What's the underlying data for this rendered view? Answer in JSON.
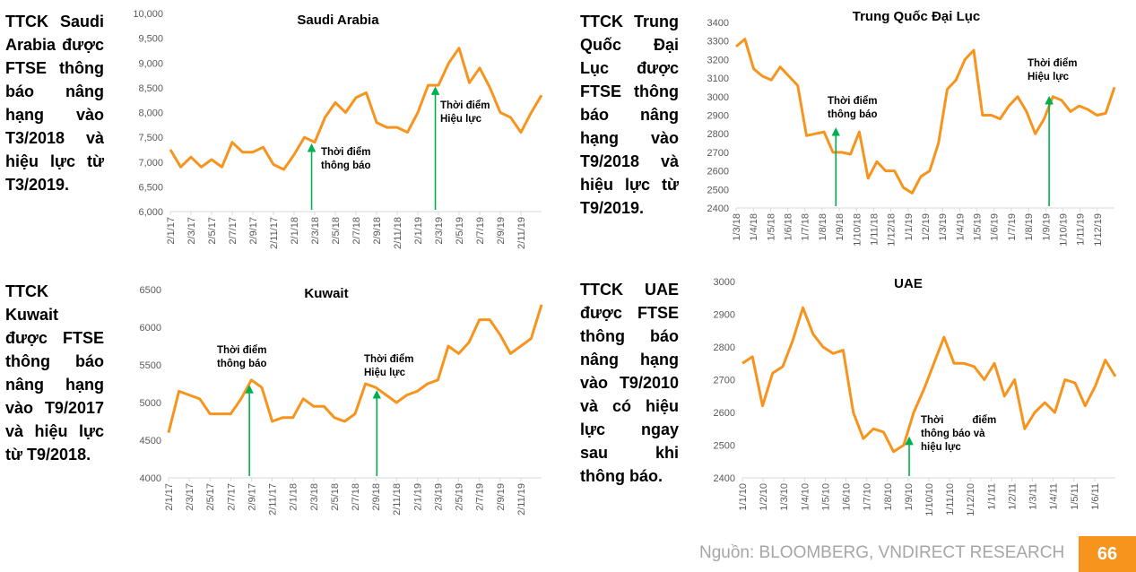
{
  "descriptions": {
    "saudi": "TTCK Saudi Arabia được FTSE thông báo nâng hạng vào T3/2018 và hiệu lực từ T3/2019.",
    "china": "TTCK Trung Quốc Đại Lục được FTSE thông báo nâng hạng vào T9/2018 và hiệu lực từ T9/2019.",
    "kuwait": "TTCK Kuwait được FTSE thông báo nâng hạng vào T9/2017 và hiệu lực từ T9/2018.",
    "uae": "TTCK UAE được FTSE thông báo nâng hạng vào T9/2010 và có hiệu lực ngay sau khi thông báo."
  },
  "footer": {
    "source": "Nguồn: BLOOMBERG, VNDIRECT RESEARCH",
    "page": "66"
  },
  "colors": {
    "line": "#f7941d",
    "arrow": "#00b050",
    "axis": "#d9d9d9"
  },
  "chart_data": [
    {
      "type": "line",
      "title": "Saudi Arabia",
      "ylim": [
        6000,
        10000
      ],
      "yticks": [
        "6,000",
        "6,500",
        "7,000",
        "7,500",
        "8,000",
        "8,500",
        "9,000",
        "9,500",
        "10,000"
      ],
      "ytick_values": [
        6000,
        6500,
        7000,
        7500,
        8000,
        8500,
        9000,
        9500,
        10000
      ],
      "xlim": [
        0,
        36
      ],
      "xticks": [
        "2/1/17",
        "2/3/17",
        "2/5/17",
        "2/7/17",
        "2/9/17",
        "2/11/17",
        "2/1/18",
        "2/3/18",
        "2/5/18",
        "2/7/18",
        "2/9/18",
        "2/11/18",
        "2/1/19",
        "2/3/19",
        "2/5/19",
        "2/7/19",
        "2/9/19",
        "2/11/19"
      ],
      "xtick_step_months": 2,
      "values": [
        7250,
        6900,
        7100,
        6900,
        7050,
        6900,
        7400,
        7200,
        7200,
        7300,
        6950,
        6850,
        7150,
        7500,
        7400,
        7900,
        8200,
        8000,
        8300,
        8400,
        7800,
        7700,
        7700,
        7600,
        8000,
        8550,
        8550,
        9000,
        9300,
        8600,
        8900,
        8500,
        8000,
        7900,
        7600,
        8000,
        8350
      ],
      "annotations": [
        {
          "label_line1": "Thời điểm",
          "label_line2": "thông báo",
          "x": 13.7,
          "tip": 7400
        },
        {
          "label_line1": "Thời điểm",
          "label_line2": "Hiệu lực",
          "x": 25.7,
          "tip": 8550
        }
      ]
    },
    {
      "type": "line",
      "title": "Trung Quốc Đại Lục",
      "ylim": [
        2400,
        3400
      ],
      "yticks": [
        "2400",
        "2500",
        "2600",
        "2700",
        "2800",
        "2900",
        "3000",
        "3100",
        "3200",
        "3300",
        "3400"
      ],
      "ytick_values": [
        2400,
        2500,
        2600,
        2700,
        2800,
        2900,
        3000,
        3100,
        3200,
        3300,
        3400
      ],
      "xlim": [
        0,
        22
      ],
      "xticks": [
        "1/3/18",
        "1/4/18",
        "1/5/18",
        "1/6/18",
        "1/7/18",
        "1/8/18",
        "1/9/18",
        "1/10/18",
        "1/11/18",
        "1/12/18",
        "1/1/19",
        "1/2/19",
        "1/3/19",
        "1/4/19",
        "1/5/19",
        "1/6/19",
        "1/7/19",
        "1/8/19",
        "1/9/19",
        "1/10/19",
        "1/11/19",
        "1/12/19"
      ],
      "xtick_step_months": 1,
      "values": [
        3270,
        3310,
        3150,
        3110,
        3090,
        3160,
        3110,
        3060,
        2790,
        2800,
        2810,
        2700,
        2700,
        2690,
        2810,
        2560,
        2650,
        2600,
        2600,
        2510,
        2480,
        2570,
        2600,
        2750,
        3040,
        3090,
        3200,
        3250,
        2900,
        2900,
        2880,
        2950,
        3000,
        2920,
        2800,
        2880,
        3000,
        2980,
        2920,
        2950,
        2930,
        2900,
        2910,
        3050
      ],
      "annotations": [
        {
          "label_line1": "Thời điểm",
          "label_line2": "thông báo",
          "x": 5.8,
          "tip": 2840
        },
        {
          "label_line1": "Thời điểm",
          "label_line2": "Hiệu lực",
          "x": 18.2,
          "tip": 3010
        }
      ]
    },
    {
      "type": "line",
      "title": "Kuwait",
      "ylim": [
        4000,
        6500
      ],
      "yticks": [
        "4000",
        "4500",
        "5000",
        "5500",
        "6000",
        "6500"
      ],
      "ytick_values": [
        4000,
        4500,
        5000,
        5500,
        6000,
        6500
      ],
      "xlim": [
        0,
        36
      ],
      "xticks": [
        "2/1/17",
        "2/3/17",
        "2/5/17",
        "2/7/17",
        "2/9/17",
        "2/11/17",
        "2/1/18",
        "2/3/18",
        "2/5/18",
        "2/7/18",
        "2/9/18",
        "2/11/18",
        "2/1/19",
        "2/3/19",
        "2/5/19",
        "2/7/19",
        "2/9/19",
        "2/11/19"
      ],
      "xtick_step_months": 2,
      "values": [
        4600,
        5150,
        5100,
        5050,
        4850,
        4850,
        4850,
        5050,
        5300,
        5200,
        4750,
        4800,
        4800,
        5050,
        4950,
        4950,
        4800,
        4750,
        4850,
        5250,
        5200,
        5100,
        5000,
        5100,
        5150,
        5250,
        5300,
        5750,
        5650,
        5800,
        6100,
        6100,
        5900,
        5650,
        5750,
        5850,
        6300
      ],
      "annotations": [
        {
          "label_line1": "Thời điểm",
          "label_line2": "thông báo",
          "x": 7.8,
          "tip": 5250
        },
        {
          "label_line1": "Thời điểm",
          "label_line2": "Hiệu lực",
          "x": 20.1,
          "tip": 5180
        }
      ]
    },
    {
      "type": "line",
      "title": "UAE",
      "ylim": [
        2400,
        3000
      ],
      "yticks": [
        "2400",
        "2500",
        "2600",
        "2700",
        "2800",
        "2900",
        "3000"
      ],
      "ytick_values": [
        2400,
        2500,
        2600,
        2700,
        2800,
        2900,
        3000
      ],
      "xlim": [
        0,
        18
      ],
      "xticks": [
        "1/1/10",
        "1/2/10",
        "1/3/10",
        "1/4/10",
        "1/5/10",
        "1/6/10",
        "1/7/10",
        "1/8/10",
        "1/9/10",
        "1/10/10",
        "1/11/10",
        "1/12/10",
        "1/1/11",
        "1/2/11",
        "1/3/11",
        "1/4/11",
        "1/5/11",
        "1/6/11"
      ],
      "xtick_step_months": 1,
      "values": [
        2750,
        2770,
        2620,
        2720,
        2740,
        2820,
        2920,
        2840,
        2800,
        2780,
        2790,
        2600,
        2520,
        2550,
        2540,
        2480,
        2500,
        2600,
        2670,
        2750,
        2830,
        2750,
        2750,
        2740,
        2700,
        2750,
        2650,
        2700,
        2550,
        2600,
        2630,
        2600,
        2700,
        2690,
        2620,
        2680,
        2760,
        2710
      ],
      "annotations": [
        {
          "label_line1": "Thời          điểm",
          "label_line2": "thông báo và",
          "label_line3": "hiệu lực",
          "x": 8.05,
          "tip": 2530
        }
      ]
    }
  ]
}
